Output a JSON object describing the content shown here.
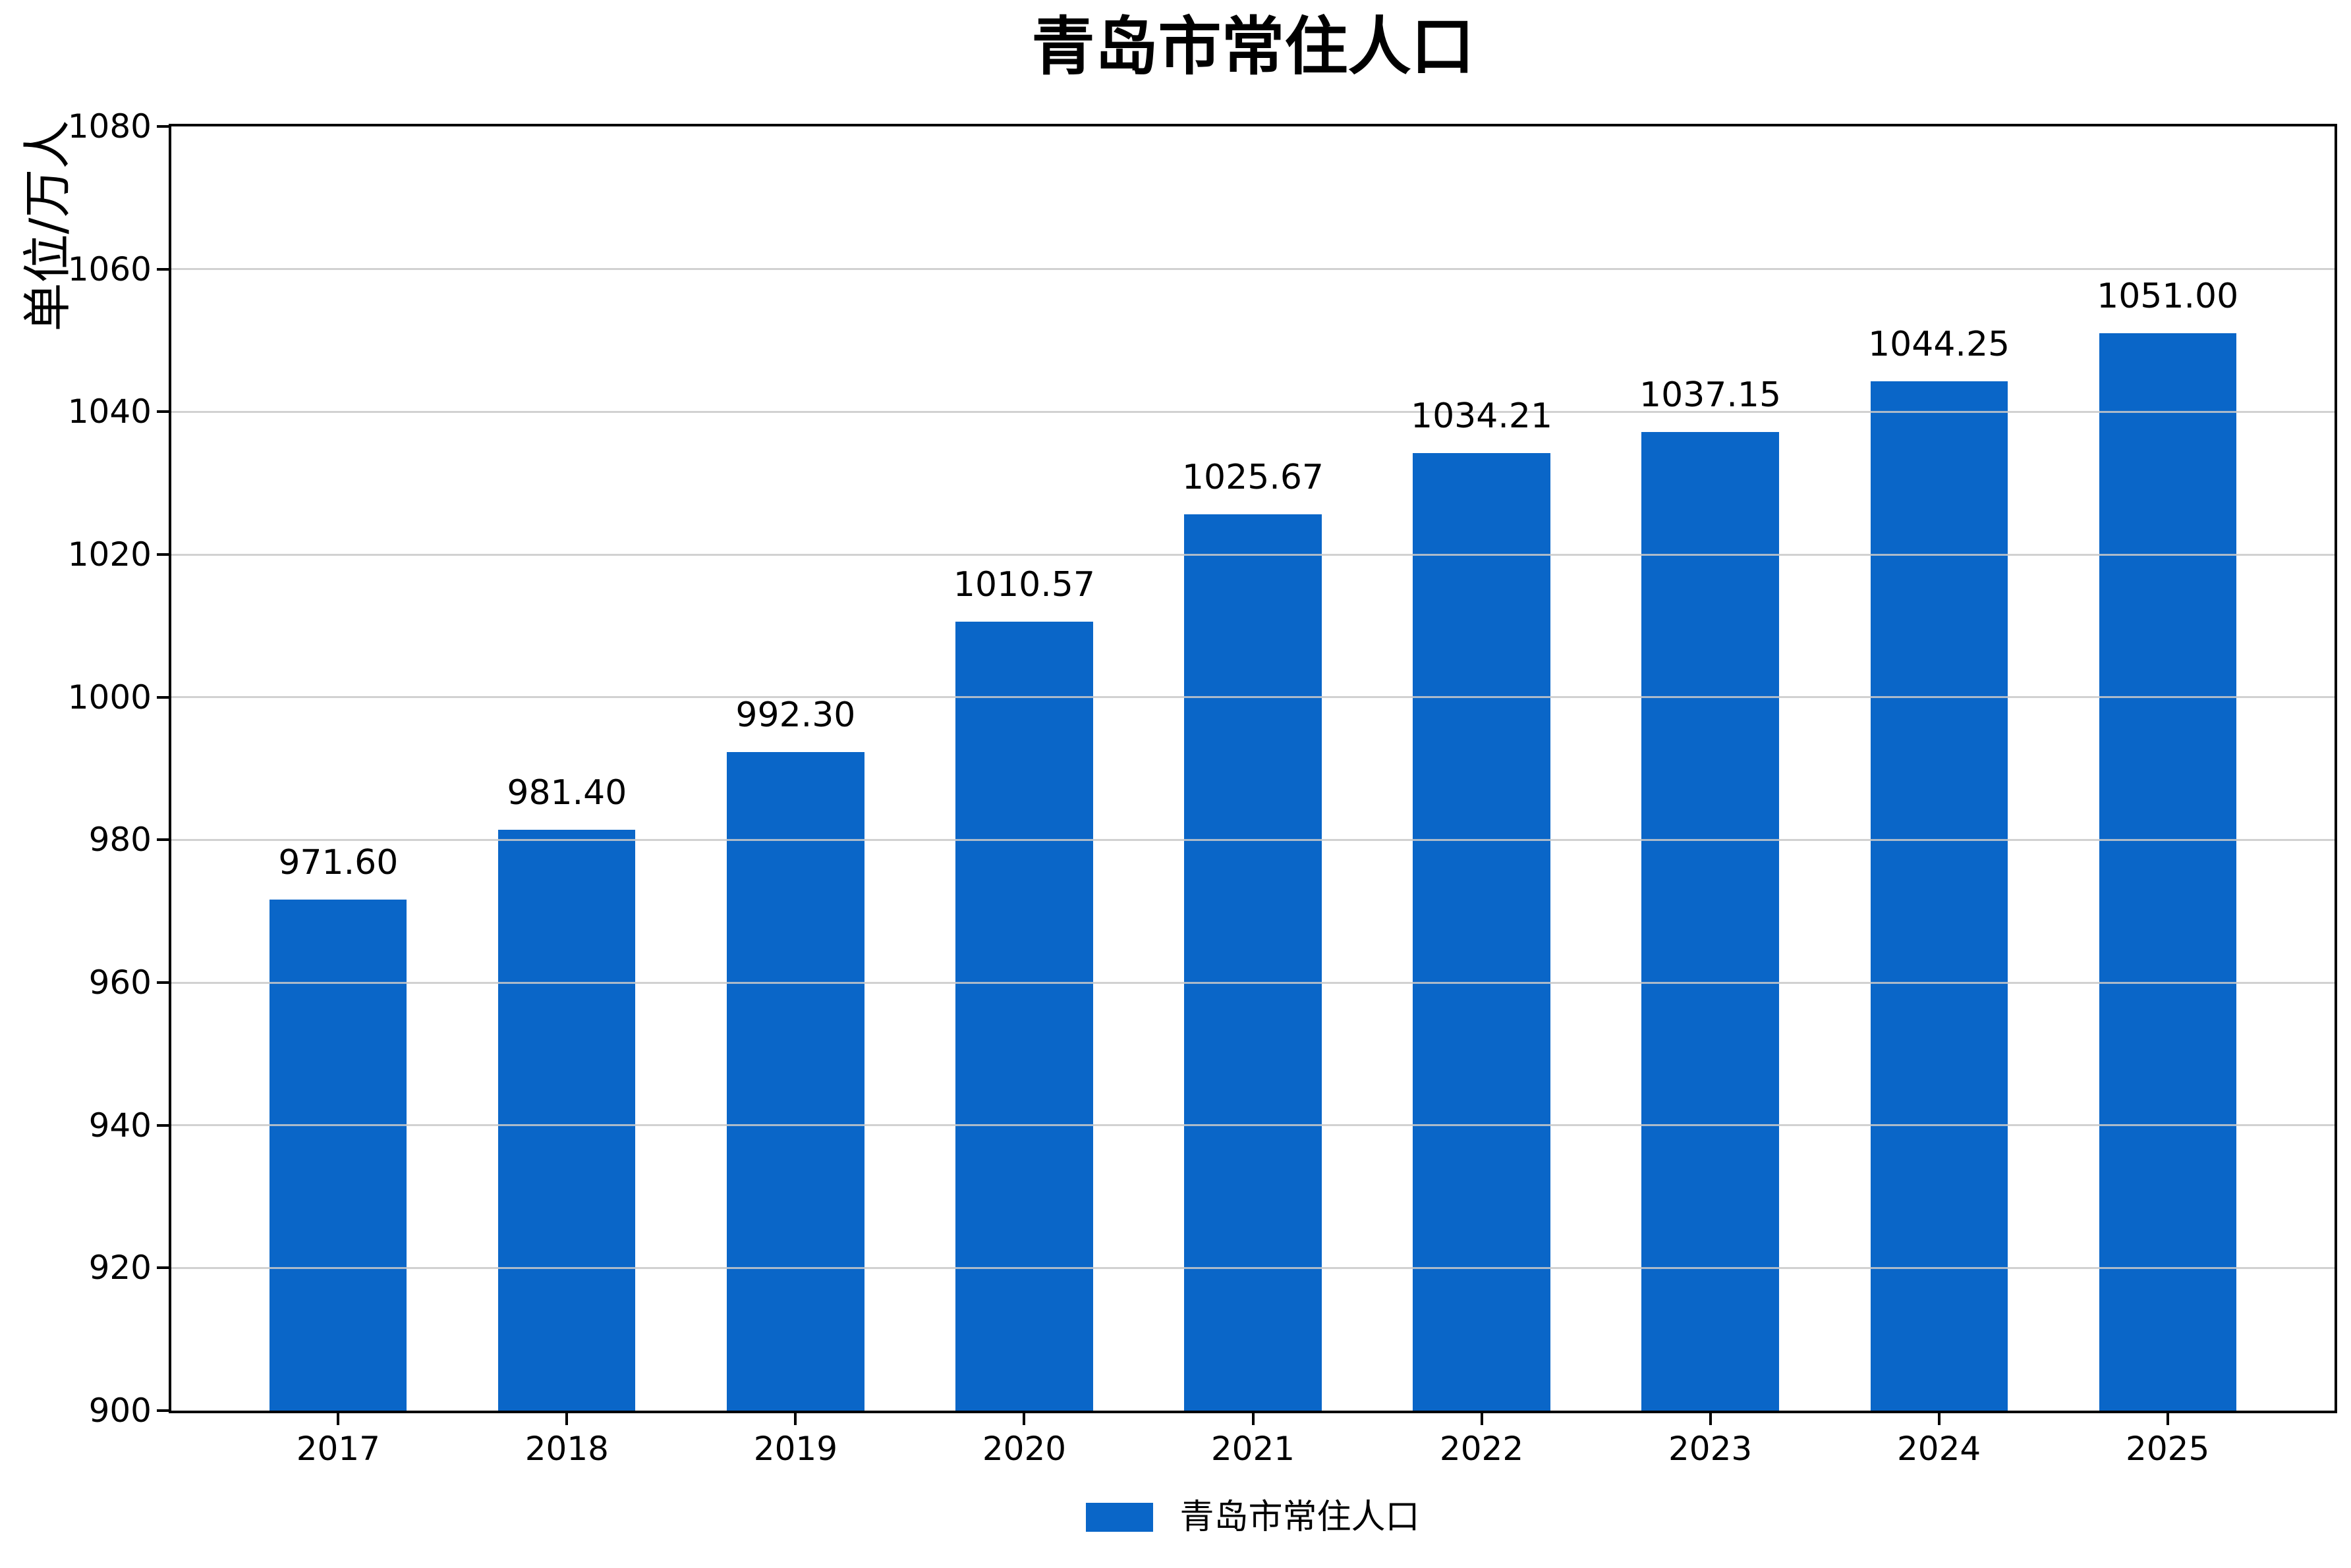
{
  "figure": {
    "background": "#ffffff"
  },
  "chart_data": {
    "type": "bar",
    "title": "青岛市常住人口",
    "ylabel": "单位/万人",
    "xlabel": "",
    "categories": [
      "2017",
      "2018",
      "2019",
      "2020",
      "2021",
      "2022",
      "2023",
      "2024",
      "2025"
    ],
    "values": [
      971.6,
      981.4,
      992.3,
      1010.57,
      1025.67,
      1034.21,
      1037.15,
      1044.25,
      1051.0
    ],
    "value_labels": [
      "971.60",
      "981.40",
      "992.30",
      "1010.57",
      "1025.67",
      "1034.21",
      "1037.15",
      "1044.25",
      "1051.00"
    ],
    "ylim": [
      900,
      1080
    ],
    "ytick_step": 20,
    "ytick_labels": [
      "900",
      "920",
      "940",
      "960",
      "980",
      "1000",
      "1020",
      "1040",
      "1060",
      "1080"
    ],
    "grid": "horizontal",
    "legend_position": "bottom-center",
    "legend": {
      "label": "青岛市常住人口"
    },
    "colors": {
      "bar": "#0a66c8",
      "grid": "#c9c9c9",
      "grid_over_bar": "#aebdd3",
      "axis": "#000000",
      "text": "#000000"
    }
  }
}
